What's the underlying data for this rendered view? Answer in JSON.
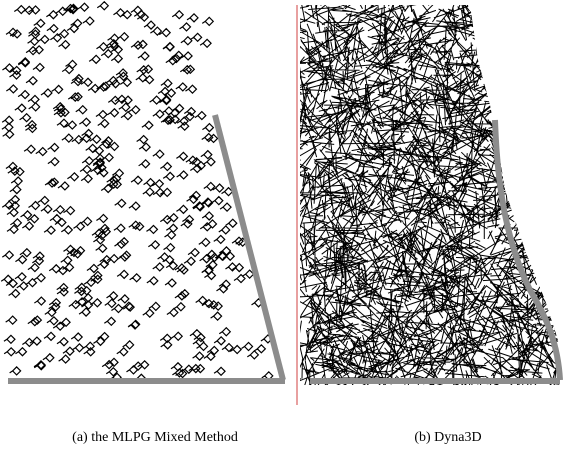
{
  "figure": {
    "captions": [
      "(a) the MLPG Mixed Method",
      "(b) Dyna3D"
    ]
  }
}
